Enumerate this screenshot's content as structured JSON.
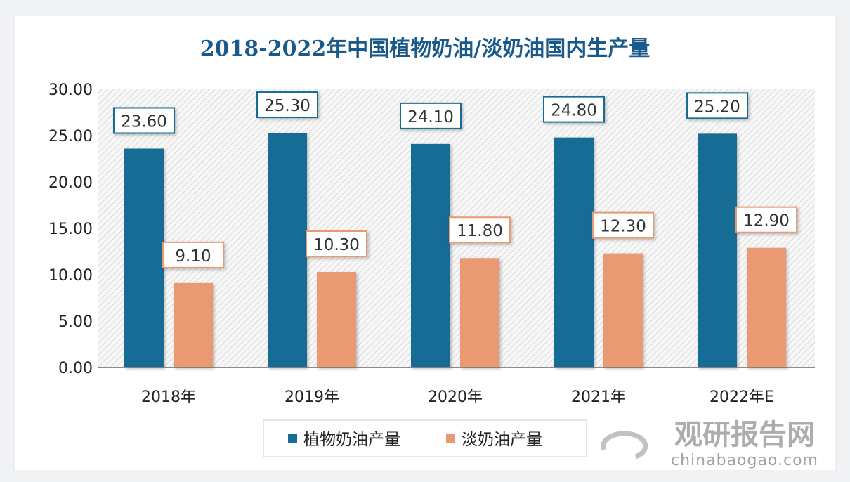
{
  "chart_data": {
    "type": "bar",
    "title": "2018-2022年中国植物奶油/淡奶油国内生产量",
    "categories": [
      "2018年",
      "2019年",
      "2020年",
      "2021年",
      "2022年E"
    ],
    "series": [
      {
        "name": "植物奶油产量",
        "values": [
          23.6,
          25.3,
          24.1,
          24.8,
          25.2
        ],
        "color": "#196c94"
      },
      {
        "name": "淡奶油产量",
        "values": [
          9.1,
          10.3,
          11.8,
          12.3,
          12.9
        ],
        "color": "#e99a72"
      }
    ],
    "yticks": [
      "0.00",
      "5.00",
      "10.00",
      "15.00",
      "20.00",
      "25.00",
      "30.00"
    ],
    "ylim": [
      0,
      30
    ],
    "grid": false,
    "legend": "bottom",
    "xlabel": "",
    "ylabel": ""
  },
  "watermark": {
    "cn": "观研报告网",
    "url": "chinabaogao.com"
  }
}
